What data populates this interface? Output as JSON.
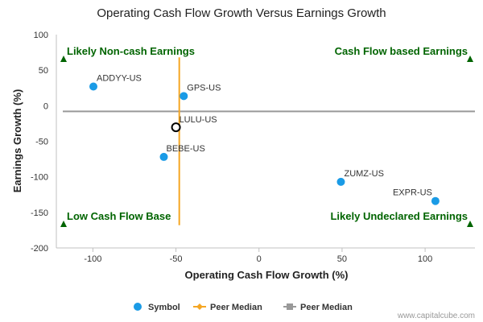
{
  "chart_data": {
    "type": "scatter",
    "title": "Operating Cash Flow Growth Versus Earnings Growth",
    "xlabel": "Operating Cash Flow Growth (%)",
    "ylabel": "Earnings Growth (%)",
    "xlim": [
      -122,
      130
    ],
    "ylim": [
      -200,
      100
    ],
    "xticks": [
      -100,
      -50,
      0,
      50,
      100
    ],
    "yticks": [
      100,
      50,
      0,
      -50,
      -100,
      -150,
      -200
    ],
    "grid": false,
    "series": [
      {
        "name": "Symbol",
        "color": "#1a9be6",
        "points": [
          {
            "label": "ADDYY-US",
            "x": -99.7,
            "y": 27,
            "highlight": false
          },
          {
            "label": "GPS-US",
            "x": -45.3,
            "y": 13.6,
            "highlight": false
          },
          {
            "label": "LULU-US",
            "x": -50,
            "y": -30.3,
            "highlight": true
          },
          {
            "label": "BEBE-US",
            "x": -57.3,
            "y": -72,
            "highlight": false
          },
          {
            "label": "ZUMZ-US",
            "x": 49.3,
            "y": -107,
            "highlight": false
          },
          {
            "label": "EXPR-US",
            "x": 106.2,
            "y": -134,
            "highlight": false
          }
        ]
      }
    ],
    "peer_median_x": -48,
    "peer_median_y": -8,
    "quadrant_labels": {
      "top_left": "Likely Non-cash Earnings",
      "top_right": "Cash Flow based Earnings",
      "bottom_left": "Low Cash Flow Base",
      "bottom_right": "Likely Undeclared Earnings"
    },
    "legend": {
      "position": "bottom",
      "items": [
        {
          "label": "Symbol",
          "color": "#1a9be6",
          "marker": "circle"
        },
        {
          "label": "Peer Median",
          "color": "#f5a623",
          "marker": "diamond"
        },
        {
          "label": "Peer Median",
          "color": "#999999",
          "marker": "square"
        }
      ]
    },
    "colors": {
      "point": "#1a9be6",
      "median_x": "#f5a623",
      "median_y": "#999999",
      "quadrant": "#006400"
    }
  },
  "credit": "www.capitalcube.com"
}
